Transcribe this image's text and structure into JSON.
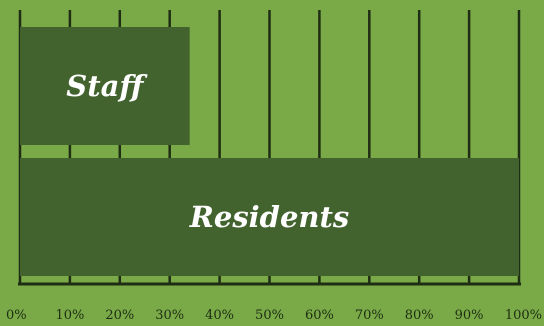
{
  "chart_data": {
    "type": "bar",
    "orientation": "horizontal",
    "categories": [
      "Staff",
      "Residents"
    ],
    "values": [
      34,
      100
    ],
    "value_unit": "percent",
    "xlim": [
      0,
      100
    ],
    "x_ticks": [
      "0%",
      "10%",
      "20%",
      "30%",
      "40%",
      "50%",
      "60%",
      "70%",
      "80%",
      "90%",
      "100%"
    ],
    "grid": "vertical",
    "legend": "none",
    "colors": {
      "background": "#79aa47",
      "bar": "#42632e",
      "bar_label": "#ffffff",
      "grid": "#1e2d13",
      "tick_label": "#1e2d13"
    }
  }
}
